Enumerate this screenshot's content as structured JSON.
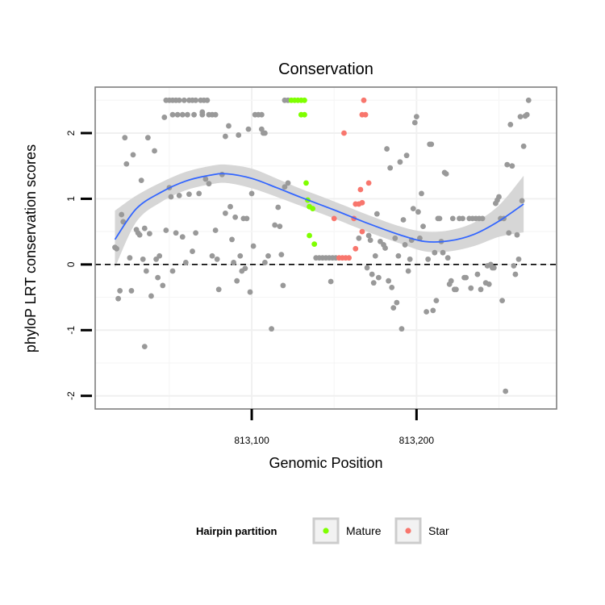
{
  "chart_data": {
    "type": "scatter",
    "title": "Conservation",
    "xlabel": "Genomic Position",
    "ylabel": "phyloP LRT conservation scores",
    "xlim": [
      813005,
      813285
    ],
    "ylim": [
      -2.2,
      2.7
    ],
    "x_ticks": [
      813100,
      813200
    ],
    "x_tick_labels": [
      "813,100",
      "813,200"
    ],
    "y_ticks": [
      -2,
      -1,
      0,
      1,
      2
    ],
    "y_tick_labels": [
      "-2",
      "-1",
      "0",
      "1",
      "2"
    ],
    "grid": true,
    "reference_line": {
      "y": 0,
      "style": "dashed"
    },
    "legend": {
      "title": "Hairpin partition",
      "placement": "bottom",
      "entries": [
        {
          "label": "Mature",
          "color": "#7fff00"
        },
        {
          "label": "Star",
          "color": "#f8766d"
        }
      ]
    },
    "colors": {
      "other": "#999999",
      "Mature": "#7fff00",
      "Star": "#f8766d",
      "smooth": "#3366ff",
      "ribbon": "#d6d6d6"
    },
    "smooth": {
      "x": [
        813017,
        813030,
        813045,
        813060,
        813075,
        813085,
        813100,
        813115,
        813130,
        813150,
        813170,
        813190,
        813205,
        813220,
        813235,
        813250,
        813265
      ],
      "y": [
        0.38,
        0.85,
        1.1,
        1.27,
        1.36,
        1.38,
        1.31,
        1.17,
        1.02,
        0.83,
        0.63,
        0.45,
        0.35,
        0.36,
        0.46,
        0.66,
        0.92
      ],
      "upper": [
        0.82,
        1.05,
        1.25,
        1.41,
        1.5,
        1.52,
        1.46,
        1.31,
        1.15,
        0.96,
        0.76,
        0.58,
        0.5,
        0.52,
        0.64,
        0.9,
        1.35
      ],
      "lower": [
        -0.05,
        0.65,
        0.95,
        1.13,
        1.22,
        1.24,
        1.16,
        1.03,
        0.89,
        0.7,
        0.5,
        0.32,
        0.2,
        0.2,
        0.28,
        0.42,
        0.49
      ]
    },
    "series": [
      {
        "name": "Mature",
        "points": [
          [
            813124,
            2.5
          ],
          [
            813126,
            2.5
          ],
          [
            813128,
            2.5
          ],
          [
            813130,
            2.5
          ],
          [
            813132,
            2.5
          ],
          [
            813130,
            2.28
          ],
          [
            813132,
            2.28
          ],
          [
            813133,
            1.24
          ],
          [
            813134,
            0.98
          ],
          [
            813135,
            0.88
          ],
          [
            813137,
            0.85
          ],
          [
            813135,
            0.44
          ],
          [
            813138,
            0.31
          ]
        ]
      },
      {
        "name": "Star",
        "points": [
          [
            813168,
            2.5
          ],
          [
            813167,
            2.28
          ],
          [
            813169,
            2.28
          ],
          [
            813156,
            2.0
          ],
          [
            813171,
            1.24
          ],
          [
            813166,
            1.14
          ],
          [
            813167,
            0.94
          ],
          [
            813163,
            0.92
          ],
          [
            813165,
            0.92
          ],
          [
            813150,
            0.7
          ],
          [
            813162,
            0.7
          ],
          [
            813167,
            0.5
          ],
          [
            813163,
            0.24
          ],
          [
            813153,
            0.1
          ],
          [
            813155,
            0.1
          ],
          [
            813157,
            0.1
          ],
          [
            813159,
            0.1
          ]
        ]
      },
      {
        "name": "",
        "points": [
          [
            813017,
            0.26
          ],
          [
            813018,
            0.24
          ],
          [
            813019,
            -0.52
          ],
          [
            813020,
            -0.4
          ],
          [
            813021,
            0.76
          ],
          [
            813022,
            0.65
          ],
          [
            813023,
            1.93
          ],
          [
            813024,
            1.53
          ],
          [
            813026,
            0.1
          ],
          [
            813027,
            -0.4
          ],
          [
            813028,
            1.67
          ],
          [
            813030,
            0.53
          ],
          [
            813031,
            0.48
          ],
          [
            813032,
            0.45
          ],
          [
            813033,
            1.28
          ],
          [
            813034,
            0.08
          ],
          [
            813035,
            -1.25
          ],
          [
            813035,
            0.55
          ],
          [
            813036,
            -0.1
          ],
          [
            813037,
            1.93
          ],
          [
            813038,
            0.47
          ],
          [
            813039,
            -0.48
          ],
          [
            813041,
            1.73
          ],
          [
            813042,
            0.08
          ],
          [
            813043,
            -0.2
          ],
          [
            813044,
            0.13
          ],
          [
            813046,
            -0.32
          ],
          [
            813047,
            2.24
          ],
          [
            813048,
            0.52
          ],
          [
            813050,
            1.17
          ],
          [
            813051,
            1.03
          ],
          [
            813052,
            -0.1
          ],
          [
            813048,
            2.5
          ],
          [
            813050,
            2.5
          ],
          [
            813052,
            2.5
          ],
          [
            813054,
            2.5
          ],
          [
            813056,
            2.5
          ],
          [
            813059,
            2.5
          ],
          [
            813062,
            2.5
          ],
          [
            813064,
            2.5
          ],
          [
            813066,
            2.5
          ],
          [
            813069,
            2.5
          ],
          [
            813071,
            2.5
          ],
          [
            813073,
            2.5
          ],
          [
            813052,
            2.28
          ],
          [
            813055,
            2.28
          ],
          [
            813058,
            2.28
          ],
          [
            813061,
            2.28
          ],
          [
            813065,
            2.28
          ],
          [
            813070,
            2.28
          ],
          [
            813074,
            2.28
          ],
          [
            813076,
            2.28
          ],
          [
            813078,
            2.28
          ],
          [
            813054,
            0.48
          ],
          [
            813056,
            1.05
          ],
          [
            813058,
            0.42
          ],
          [
            813060,
            0.03
          ],
          [
            813062,
            1.07
          ],
          [
            813064,
            0.2
          ],
          [
            813066,
            0.48
          ],
          [
            813068,
            1.08
          ],
          [
            813070,
            2.32
          ],
          [
            813072,
            1.3
          ],
          [
            813074,
            1.23
          ],
          [
            813076,
            0.13
          ],
          [
            813078,
            0.52
          ],
          [
            813079,
            0.08
          ],
          [
            813080,
            -0.38
          ],
          [
            813082,
            1.37
          ],
          [
            813084,
            1.95
          ],
          [
            813084,
            0.78
          ],
          [
            813086,
            2.11
          ],
          [
            813087,
            0.88
          ],
          [
            813088,
            0.38
          ],
          [
            813089,
            0.03
          ],
          [
            813090,
            0.72
          ],
          [
            813091,
            -0.25
          ],
          [
            813092,
            1.97
          ],
          [
            813093,
            0.13
          ],
          [
            813094,
            -0.1
          ],
          [
            813095,
            0.7
          ],
          [
            813096,
            -0.06
          ],
          [
            813097,
            0.7
          ],
          [
            813098,
            2.06
          ],
          [
            813099,
            -0.42
          ],
          [
            813100,
            1.08
          ],
          [
            813101,
            0.28
          ],
          [
            813102,
            2.28
          ],
          [
            813104,
            2.28
          ],
          [
            813106,
            2.28
          ],
          [
            813106,
            2.06
          ],
          [
            813107,
            2.0
          ],
          [
            813108,
            2.0
          ],
          [
            813108,
            0.03
          ],
          [
            813110,
            0.13
          ],
          [
            813112,
            -0.98
          ],
          [
            813114,
            0.6
          ],
          [
            813116,
            0.87
          ],
          [
            813117,
            0.58
          ],
          [
            813118,
            0.15
          ],
          [
            813119,
            -0.32
          ],
          [
            813120,
            1.18
          ],
          [
            813122,
            1.24
          ],
          [
            813120,
            2.5
          ],
          [
            813122,
            2.5
          ],
          [
            813139,
            0.1
          ],
          [
            813141,
            0.1
          ],
          [
            813143,
            0.1
          ],
          [
            813145,
            0.1
          ],
          [
            813147,
            0.1
          ],
          [
            813148,
            -0.26
          ],
          [
            813149,
            0.1
          ],
          [
            813151,
            0.1
          ],
          [
            813165,
            0.4
          ],
          [
            813170,
            -0.05
          ],
          [
            813171,
            0.44
          ],
          [
            813172,
            0.37
          ],
          [
            813173,
            -0.15
          ],
          [
            813174,
            -0.28
          ],
          [
            813175,
            0.13
          ],
          [
            813176,
            0.77
          ],
          [
            813177,
            -0.2
          ],
          [
            813178,
            0.35
          ],
          [
            813180,
            0.3
          ],
          [
            813181,
            0.25
          ],
          [
            813182,
            1.76
          ],
          [
            813183,
            -0.25
          ],
          [
            813184,
            1.47
          ],
          [
            813185,
            -0.35
          ],
          [
            813186,
            -0.66
          ],
          [
            813187,
            0.4
          ],
          [
            813188,
            -0.58
          ],
          [
            813189,
            0.13
          ],
          [
            813190,
            1.56
          ],
          [
            813191,
            -0.98
          ],
          [
            813192,
            0.68
          ],
          [
            813193,
            0.3
          ],
          [
            813194,
            1.66
          ],
          [
            813195,
            -0.1
          ],
          [
            813196,
            0.08
          ],
          [
            813197,
            0.37
          ],
          [
            813198,
            0.85
          ],
          [
            813199,
            2.16
          ],
          [
            813200,
            2.25
          ],
          [
            813201,
            0.8
          ],
          [
            813202,
            0.4
          ],
          [
            813203,
            1.08
          ],
          [
            813204,
            0.58
          ],
          [
            813206,
            -0.72
          ],
          [
            813207,
            0.08
          ],
          [
            813208,
            1.83
          ],
          [
            813209,
            1.83
          ],
          [
            813210,
            -0.7
          ],
          [
            813211,
            0.18
          ],
          [
            813212,
            -0.55
          ],
          [
            813213,
            0.7
          ],
          [
            813214,
            0.7
          ],
          [
            813215,
            0.35
          ],
          [
            813216,
            0.18
          ],
          [
            813217,
            1.4
          ],
          [
            813218,
            1.38
          ],
          [
            813219,
            0.1
          ],
          [
            813220,
            -0.3
          ],
          [
            813221,
            -0.25
          ],
          [
            813222,
            0.7
          ],
          [
            813223,
            -0.38
          ],
          [
            813224,
            -0.38
          ],
          [
            813226,
            0.7
          ],
          [
            813228,
            0.7
          ],
          [
            813229,
            -0.2
          ],
          [
            813230,
            -0.2
          ],
          [
            813232,
            0.7
          ],
          [
            813233,
            -0.36
          ],
          [
            813234,
            0.7
          ],
          [
            813236,
            0.7
          ],
          [
            813237,
            -0.15
          ],
          [
            813238,
            0.7
          ],
          [
            813239,
            -0.38
          ],
          [
            813240,
            0.7
          ],
          [
            813242,
            -0.28
          ],
          [
            813243,
            -0.02
          ],
          [
            813244,
            -0.3
          ],
          [
            813245,
            0.0
          ],
          [
            813246,
            -0.05
          ],
          [
            813247,
            -0.05
          ],
          [
            813248,
            0.93
          ],
          [
            813249,
            0.98
          ],
          [
            813250,
            1.03
          ],
          [
            813251,
            0.7
          ],
          [
            813252,
            -0.55
          ],
          [
            813253,
            0.7
          ],
          [
            813254,
            -1.93
          ],
          [
            813255,
            1.52
          ],
          [
            813256,
            0.48
          ],
          [
            813257,
            2.13
          ],
          [
            813258,
            1.5
          ],
          [
            813259,
            -0.02
          ],
          [
            813260,
            -0.15
          ],
          [
            813261,
            0.45
          ],
          [
            813262,
            0.08
          ],
          [
            813263,
            2.25
          ],
          [
            813264,
            0.97
          ],
          [
            813265,
            1.8
          ],
          [
            813266,
            2.26
          ],
          [
            813267,
            2.28
          ],
          [
            813268,
            2.5
          ]
        ]
      }
    ]
  }
}
